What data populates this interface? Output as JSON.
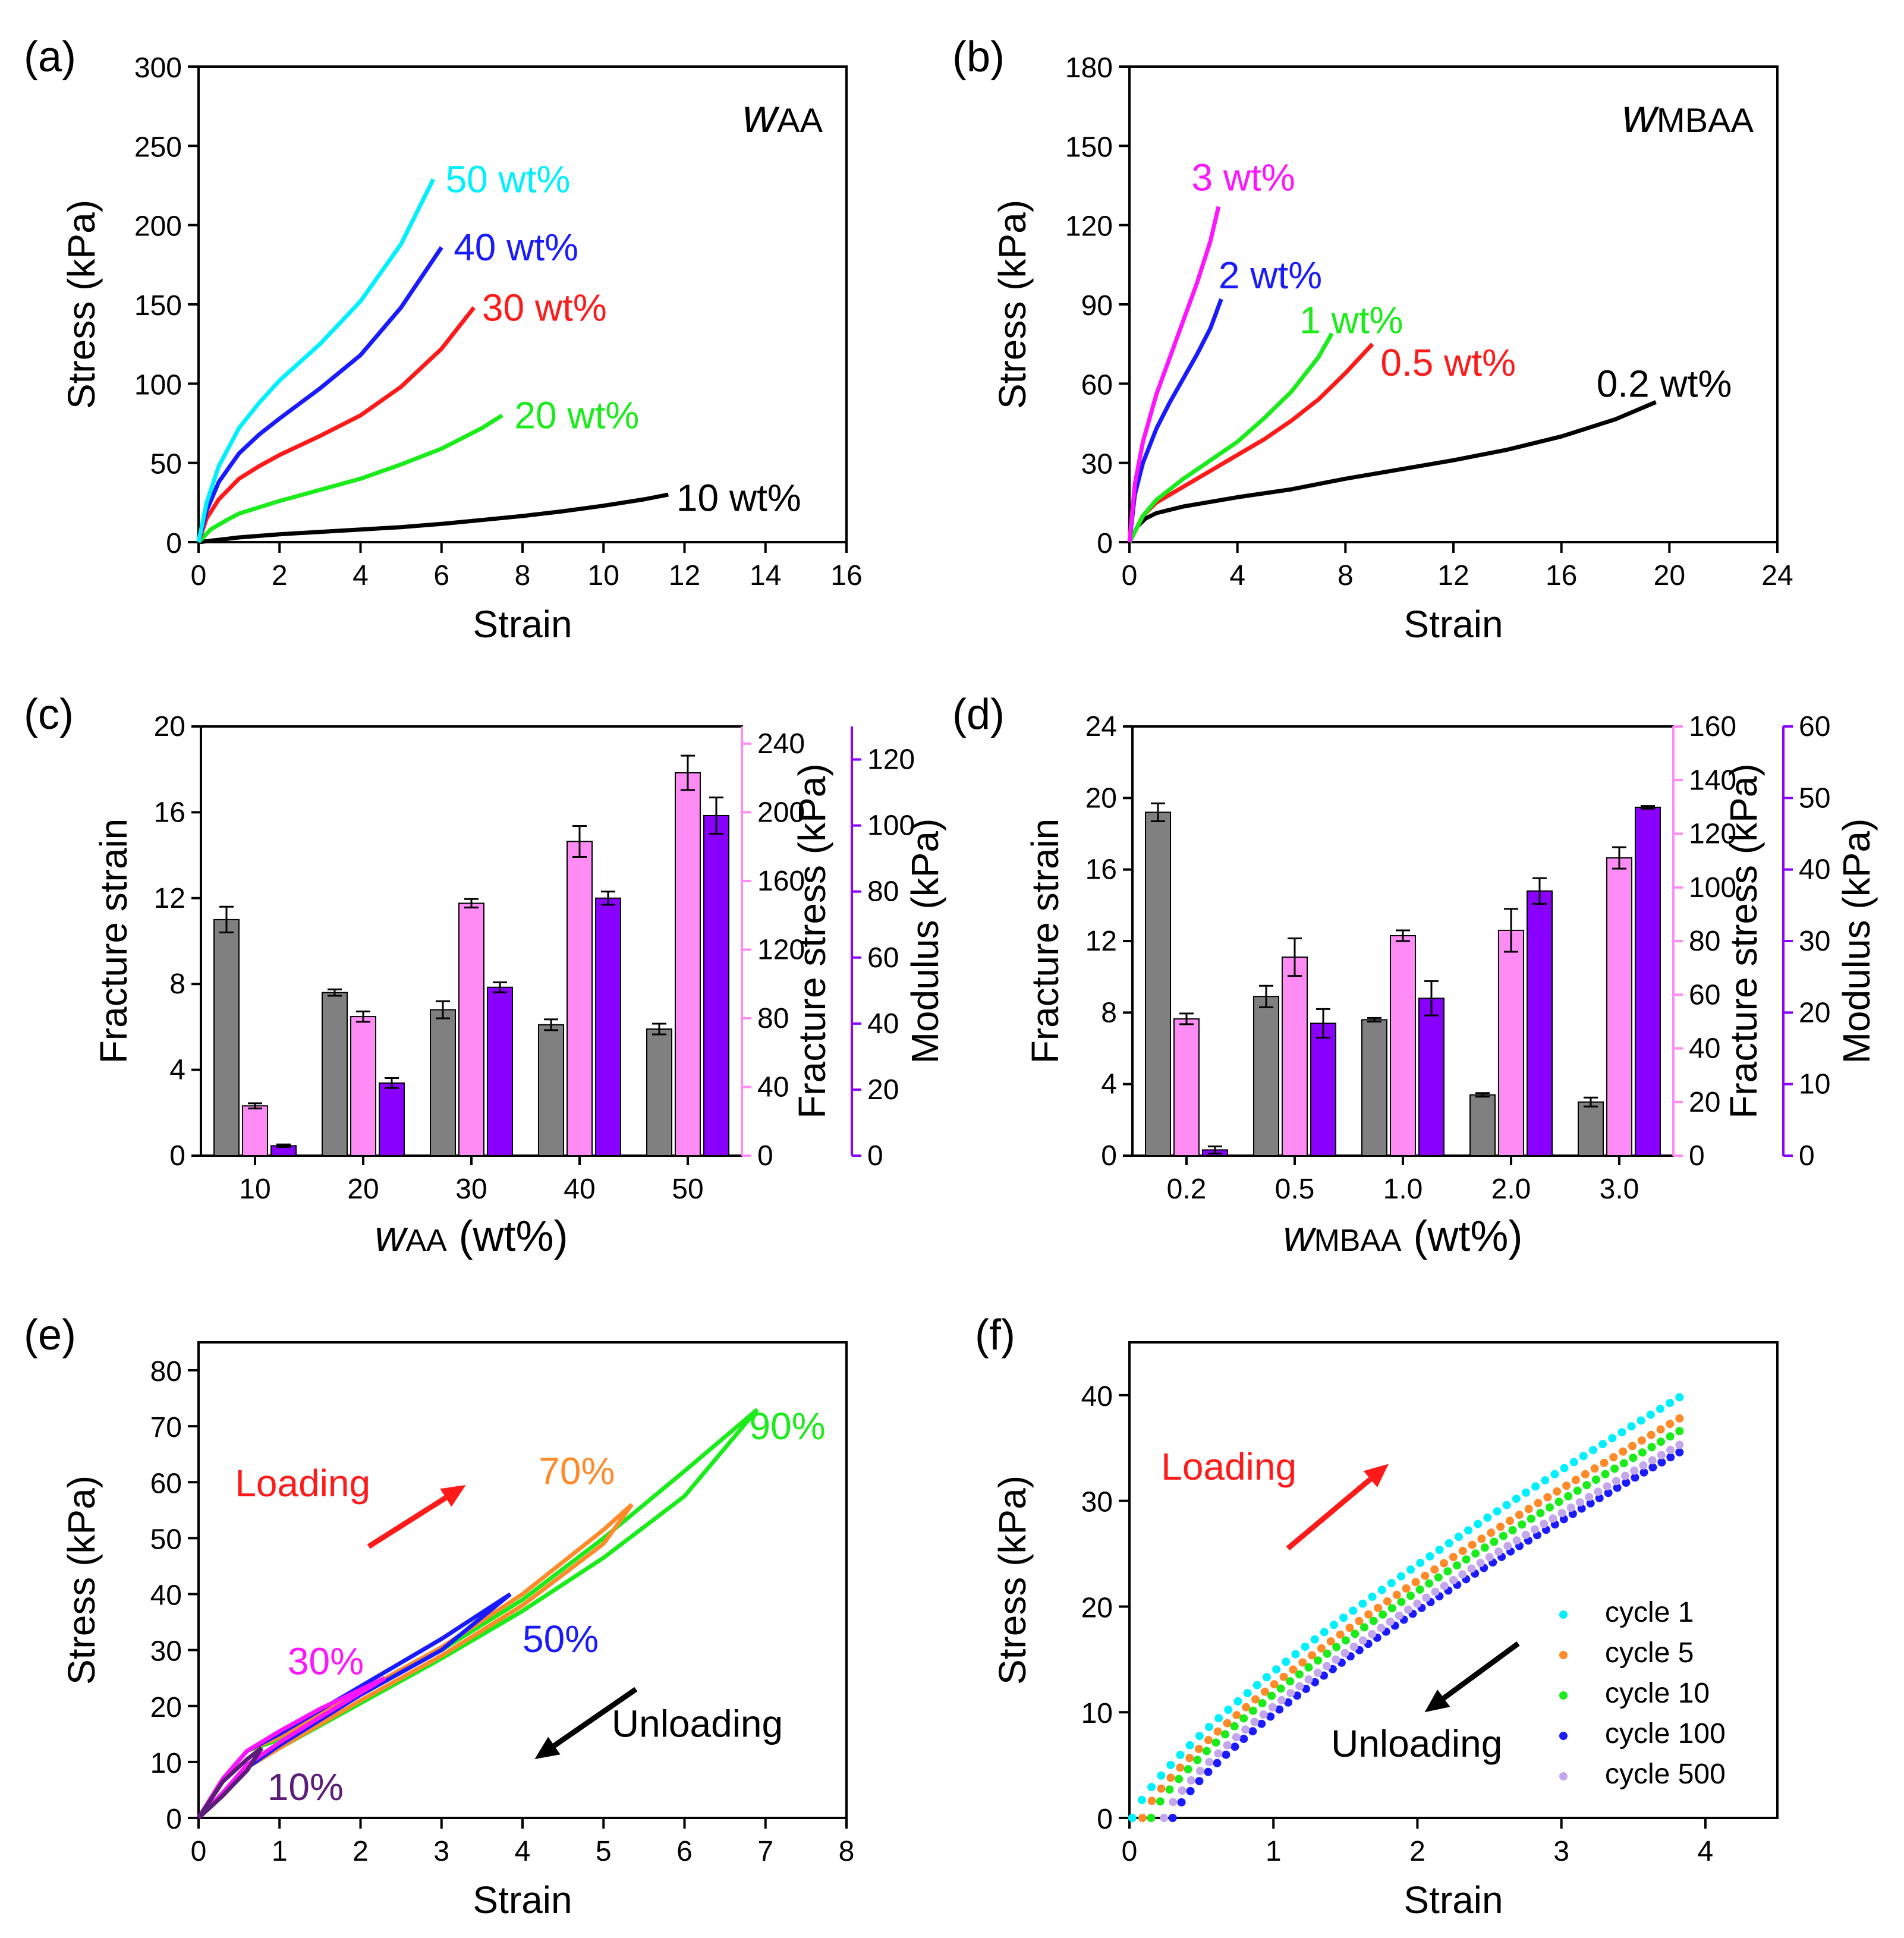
{
  "colors": {
    "gray": "#808080",
    "pink": "#ff8cf5",
    "purple": "#8a00ff",
    "cyan": "#00f0ff",
    "blue": "#1a1aff",
    "red": "#ff1a1a",
    "green": "#1aeb1a",
    "black": "#000000",
    "magenta": "#ff14ff",
    "orange": "#ff8a2a",
    "darkpurple": "#5a1e78",
    "lavender": "#c3a7ea"
  },
  "chart_data": [
    {
      "panel": "(a)",
      "type": "line",
      "title": "wAA",
      "title_main": "w",
      "title_sub": "AA",
      "xlabel": "Strain",
      "ylabel": "Stress (kPa)",
      "xlim": [
        0,
        16
      ],
      "ylim": [
        0,
        300
      ],
      "xticks": [
        0,
        2,
        4,
        6,
        8,
        10,
        12,
        14,
        16
      ],
      "yticks": [
        0,
        50,
        100,
        150,
        200,
        250,
        300
      ],
      "series": [
        {
          "name": "10 wt%",
          "label": "10 wt%",
          "color": "black",
          "x": [
            0,
            1,
            2,
            3,
            4,
            5,
            6,
            7,
            8,
            9,
            10,
            11,
            11.6
          ],
          "y": [
            0,
            3,
            5,
            6.5,
            8,
            9.5,
            11.5,
            14,
            16.5,
            19.5,
            23,
            27,
            30
          ],
          "label_at": [
            11.8,
            28
          ]
        },
        {
          "name": "20 wt%",
          "label": "20 wt%",
          "color": "green",
          "x": [
            0,
            0.3,
            0.7,
            1,
            1.5,
            2,
            3,
            4,
            5,
            6,
            7,
            7.5
          ],
          "y": [
            0,
            8,
            14,
            18,
            22,
            26,
            33,
            40,
            49,
            59,
            72,
            80
          ],
          "label_at": [
            7.8,
            80
          ]
        },
        {
          "name": "30 wt%",
          "label": "30 wt%",
          "color": "red",
          "x": [
            0,
            0.2,
            0.5,
            1,
            1.5,
            2,
            3,
            4,
            5,
            6,
            6.8
          ],
          "y": [
            0,
            15,
            27,
            40,
            48,
            55,
            67,
            80,
            98,
            122,
            148
          ],
          "label_at": [
            7.0,
            148
          ]
        },
        {
          "name": "40 wt%",
          "label": "40 wt%",
          "color": "blue",
          "x": [
            0,
            0.2,
            0.5,
            1,
            1.5,
            2,
            3,
            4,
            5,
            6
          ],
          "y": [
            0,
            20,
            38,
            56,
            68,
            78,
            97,
            118,
            148,
            186
          ],
          "label_at": [
            6.3,
            186
          ]
        },
        {
          "name": "50 wt%",
          "label": "50 wt%",
          "color": "cyan",
          "x": [
            0,
            0.2,
            0.5,
            1,
            1.5,
            2,
            3,
            4,
            5,
            5.8
          ],
          "y": [
            0,
            25,
            48,
            72,
            88,
            102,
            125,
            152,
            188,
            229
          ],
          "label_at": [
            6.1,
            229
          ]
        }
      ]
    },
    {
      "panel": "(b)",
      "type": "line",
      "title": "wMBAA",
      "title_main": "w",
      "title_sub": "MBAA",
      "xlabel": "Strain",
      "ylabel": "Stress (kPa)",
      "xlim": [
        0,
        24
      ],
      "ylim": [
        0,
        180
      ],
      "xticks": [
        0,
        4,
        8,
        12,
        16,
        20,
        24
      ],
      "yticks": [
        0,
        30,
        60,
        90,
        120,
        150,
        180
      ],
      "series": [
        {
          "name": "0.2 wt%",
          "label": "0.2 wt%",
          "color": "black",
          "x": [
            0,
            0.3,
            0.6,
            1,
            2,
            4,
            6,
            8,
            10,
            12,
            14,
            16,
            18,
            19.5
          ],
          "y": [
            0,
            6,
            9,
            11,
            13.5,
            17,
            20,
            24,
            27.5,
            31,
            35,
            40,
            46.5,
            53
          ],
          "label_at": [
            17.3,
            60
          ]
        },
        {
          "name": "0.5 wt%",
          "label": "0.5 wt%",
          "color": "red",
          "x": [
            0,
            0.5,
            1,
            2,
            3,
            4,
            5,
            6,
            7,
            8,
            9
          ],
          "y": [
            0,
            10,
            15,
            21,
            27,
            33,
            39,
            46,
            54,
            64,
            75
          ],
          "label_at": [
            9.3,
            68
          ]
        },
        {
          "name": "1 wt%",
          "label": "1 wt%",
          "color": "green",
          "x": [
            0,
            0.5,
            1,
            2,
            3,
            4,
            5,
            6,
            7,
            7.5
          ],
          "y": [
            0,
            10,
            16,
            24,
            31,
            38,
            47,
            57,
            70,
            79
          ],
          "label_at": [
            6.3,
            84
          ]
        },
        {
          "name": "2 wt%",
          "label": "2 wt%",
          "color": "blue",
          "x": [
            0,
            0.2,
            0.5,
            1,
            1.5,
            2,
            2.5,
            3,
            3.4
          ],
          "y": [
            0,
            18,
            30,
            43,
            53,
            62,
            71,
            81,
            92
          ],
          "label_at": [
            3.3,
            101
          ]
        },
        {
          "name": "3 wt%",
          "label": "3 wt%",
          "color": "magenta",
          "x": [
            0,
            0.2,
            0.5,
            1,
            1.5,
            2,
            2.5,
            3,
            3.3
          ],
          "y": [
            0,
            22,
            38,
            56,
            70,
            84,
            98,
            114,
            127
          ],
          "label_at": [
            2.3,
            138
          ]
        }
      ]
    },
    {
      "panel": "(c)",
      "type": "bar",
      "xlabel": "wAA (wt%)",
      "xlabel_main": "w",
      "xlabel_sub": "AA",
      "xlabel_unit": " (wt%)",
      "categories": [
        "10",
        "20",
        "30",
        "40",
        "50"
      ],
      "axes": [
        {
          "label": "Fracture strain",
          "side": "left",
          "color": "black",
          "ylim": [
            0,
            20
          ],
          "ticks": [
            0,
            4,
            8,
            12,
            16,
            20
          ]
        },
        {
          "label": "Fracture stress (kPa)",
          "side": "right",
          "color": "pink",
          "ylim": [
            0,
            250
          ],
          "ticks": [
            0,
            40,
            80,
            120,
            160,
            200,
            240
          ]
        },
        {
          "label": "Modulus (kPa)",
          "side": "right-outer",
          "color": "purple",
          "ylim": [
            0,
            130
          ],
          "ticks": [
            0,
            20,
            40,
            60,
            80,
            100,
            120
          ]
        }
      ],
      "series": [
        {
          "name": "Fracture strain",
          "axis": 0,
          "color": "gray",
          "values": [
            11,
            7.6,
            6.8,
            6.1,
            5.9
          ],
          "errors": [
            0.6,
            0.15,
            0.4,
            0.25,
            0.25
          ]
        },
        {
          "name": "Fracture stress",
          "axis": 1,
          "color": "pink",
          "values": [
            29,
            81,
            147,
            183,
            223
          ],
          "errors": [
            1.5,
            3,
            2.5,
            9,
            10
          ]
        },
        {
          "name": "Modulus",
          "axis": 2,
          "color": "purple",
          "values": [
            3,
            22,
            51,
            78,
            103
          ],
          "errors": [
            0.4,
            1.5,
            1.5,
            2,
            5.5
          ]
        }
      ]
    },
    {
      "panel": "(d)",
      "type": "bar",
      "xlabel": "wMBAA (wt%)",
      "xlabel_main": "w",
      "xlabel_sub": "MBAA",
      "xlabel_unit": " (wt%)",
      "categories": [
        "0.2",
        "0.5",
        "1.0",
        "2.0",
        "3.0"
      ],
      "axes": [
        {
          "label": "Fracture strain",
          "side": "left",
          "color": "black",
          "ylim": [
            0,
            24
          ],
          "ticks": [
            0,
            4,
            8,
            12,
            16,
            20,
            24
          ]
        },
        {
          "label": "Fracture stress (kPa)",
          "side": "right",
          "color": "pink",
          "ylim": [
            0,
            160
          ],
          "ticks": [
            0,
            20,
            40,
            60,
            80,
            100,
            120,
            140,
            160
          ]
        },
        {
          "label": "Modulus (kPa)",
          "side": "right-outer",
          "color": "purple",
          "ylim": [
            0,
            60
          ],
          "ticks": [
            0,
            10,
            20,
            30,
            40,
            50,
            60
          ]
        }
      ],
      "series": [
        {
          "name": "Fracture strain",
          "axis": 0,
          "color": "gray",
          "values": [
            19.2,
            8.9,
            7.6,
            3.4,
            3.0
          ],
          "errors": [
            0.5,
            0.6,
            0.1,
            0.1,
            0.25
          ]
        },
        {
          "name": "Fracture stress",
          "axis": 1,
          "color": "pink",
          "values": [
            51,
            74,
            82,
            84,
            111
          ],
          "errors": [
            2,
            7,
            2,
            8,
            4
          ]
        },
        {
          "name": "Modulus",
          "axis": 2,
          "color": "purple",
          "values": [
            0.8,
            18.5,
            22,
            37,
            48.7
          ],
          "errors": [
            0.5,
            2,
            2.4,
            1.8,
            0.2
          ]
        }
      ]
    },
    {
      "panel": "(e)",
      "type": "line",
      "xlabel": "Strain",
      "ylabel": "Stress (kPa)",
      "xlim": [
        0,
        8
      ],
      "ylim": [
        0,
        85
      ],
      "xticks": [
        0,
        1,
        2,
        3,
        4,
        5,
        6,
        7,
        8
      ],
      "yticks": [
        0,
        10,
        20,
        30,
        40,
        50,
        60,
        70,
        80
      ],
      "arrows": [
        {
          "label": "Loading",
          "color": "red",
          "text_at": [
            0.45,
            57.5
          ],
          "from": [
            2.1,
            48.5
          ],
          "to": [
            3.3,
            59.5
          ]
        },
        {
          "label": "Unloading",
          "color": "black",
          "text_at": [
            5.1,
            14.5
          ],
          "from": [
            5.4,
            23
          ],
          "to": [
            4.15,
            10.5
          ]
        }
      ],
      "series": [
        {
          "name": "90%",
          "label": "90%",
          "color": "green",
          "x": [
            0,
            0.3,
            0.6,
            1,
            2,
            3,
            4,
            5,
            6,
            6.9
          ],
          "y": [
            0,
            7,
            12,
            14,
            22,
            30,
            39,
            50,
            62,
            73
          ],
          "unload_y": [
            0,
            4,
            9,
            12.5,
            20.5,
            28.5,
            37,
            46.5,
            57.5,
            73
          ],
          "label_at": [
            6.8,
            70
          ]
        },
        {
          "name": "70%",
          "label": "70%",
          "color": "orange",
          "x": [
            0,
            0.3,
            0.6,
            1,
            2,
            3,
            4,
            5,
            5.35
          ],
          "y": [
            0,
            7,
            12,
            14.5,
            22.5,
            30.5,
            40,
            51.5,
            56
          ],
          "unload_y": [
            0,
            4,
            9,
            12.5,
            21,
            29,
            38,
            49,
            56
          ],
          "label_at": [
            4.2,
            62
          ]
        },
        {
          "name": "50%",
          "label": "50%",
          "color": "blue",
          "x": [
            0,
            0.3,
            0.6,
            1,
            2,
            3,
            3.85
          ],
          "y": [
            0,
            7,
            12,
            15,
            23.5,
            32,
            40
          ],
          "unload_y": [
            0,
            4,
            9,
            13,
            22,
            30,
            40
          ],
          "label_at": [
            4.0,
            32
          ]
        },
        {
          "name": "30%",
          "label": "30%",
          "color": "magenta",
          "x": [
            0,
            0.3,
            0.6,
            1,
            1.5,
            2.3
          ],
          "y": [
            0,
            7,
            12,
            15.5,
            19.5,
            25
          ],
          "unload_y": [
            0,
            4.5,
            9.5,
            13.5,
            18,
            25
          ],
          "label_at": [
            1.1,
            28
          ]
        },
        {
          "name": "10%",
          "label": "10%",
          "color": "darkpurple",
          "x": [
            0,
            0.3,
            0.6,
            0.78
          ],
          "y": [
            0,
            6.5,
            10.5,
            12.5
          ],
          "unload_y": [
            0,
            4,
            8.5,
            12.5
          ],
          "label_at": [
            0.85,
            5.5
          ]
        }
      ]
    },
    {
      "panel": "(f)",
      "type": "scatter",
      "xlabel": "Strain",
      "ylabel": "Stress (kPa)",
      "xlim": [
        0,
        4.5
      ],
      "ylim": [
        0,
        45
      ],
      "xticks": [
        0,
        1,
        2,
        3,
        4
      ],
      "yticks": [
        0,
        10,
        20,
        30,
        40
      ],
      "legend": "bottom-right",
      "arrows": [
        {
          "label": "Loading",
          "color": "red",
          "text_at": [
            0.22,
            32
          ],
          "from": [
            1.1,
            25.5
          ],
          "to": [
            1.8,
            33.5
          ]
        },
        {
          "label": "Unloading",
          "color": "black",
          "text_at": [
            1.4,
            5.8
          ],
          "from": [
            2.7,
            16.5
          ],
          "to": [
            2.05,
            10
          ]
        }
      ],
      "series": [
        {
          "name": "cycle 1",
          "color": "cyan",
          "x0": 0.02,
          "x1": 3.82,
          "y1": 39.8
        },
        {
          "name": "cycle 5",
          "color": "orange",
          "x0": 0.09,
          "x1": 3.82,
          "y1": 37.8
        },
        {
          "name": "cycle 10",
          "color": "green",
          "x0": 0.15,
          "x1": 3.82,
          "y1": 36.6
        },
        {
          "name": "cycle 100",
          "color": "blue",
          "x0": 0.3,
          "x1": 3.82,
          "y1": 34.6
        },
        {
          "name": "cycle 500",
          "color": "lavender",
          "x0": 0.24,
          "x1": 3.82,
          "y1": 35.3
        }
      ]
    }
  ]
}
